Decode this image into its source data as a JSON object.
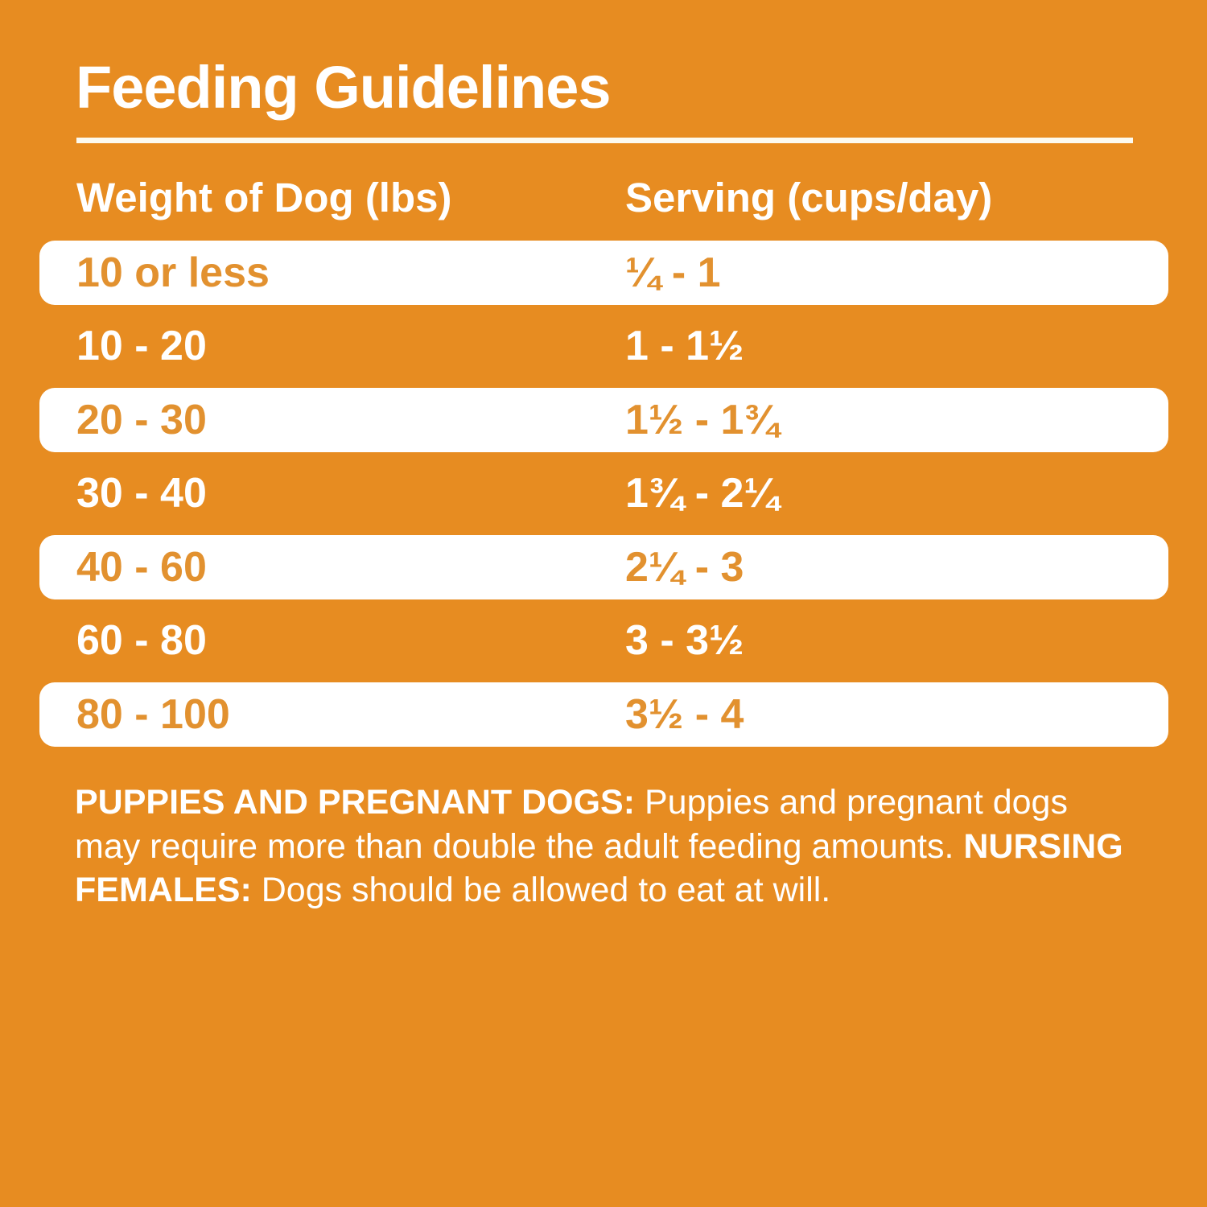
{
  "page": {
    "title": "Feeding Guidelines",
    "background_color": "#E78C21",
    "accent_text_color": "#E2912F",
    "text_color": "#FFFFFF"
  },
  "table": {
    "headers": {
      "weight": "Weight of Dog (lbs)",
      "serving": "Serving (cups/day)"
    },
    "rows": [
      {
        "weight": "10 or less",
        "serving": "¼ - 1",
        "highlight": true
      },
      {
        "weight": "10 - 20",
        "serving": "1 - 1½",
        "highlight": false
      },
      {
        "weight": "20 - 30",
        "serving": "1½ - 1¾",
        "highlight": true
      },
      {
        "weight": "30 - 40",
        "serving": "1¾ - 2¼",
        "highlight": false
      },
      {
        "weight": "40 - 60",
        "serving": "2¼ - 3",
        "highlight": true
      },
      {
        "weight": "60 - 80",
        "serving": "3 - 3½",
        "highlight": false
      },
      {
        "weight": "80 - 100",
        "serving": "3½ - 4",
        "highlight": true
      }
    ]
  },
  "footnote": {
    "label_puppies": "PUPPIES AND PREGNANT DOGS:",
    "text_puppies": " Puppies and pregnant dogs may require more than double the adult feeding amounts. ",
    "label_nursing": "NURSING FEMALES:",
    "text_nursing": " Dogs should be allowed to eat at will."
  }
}
